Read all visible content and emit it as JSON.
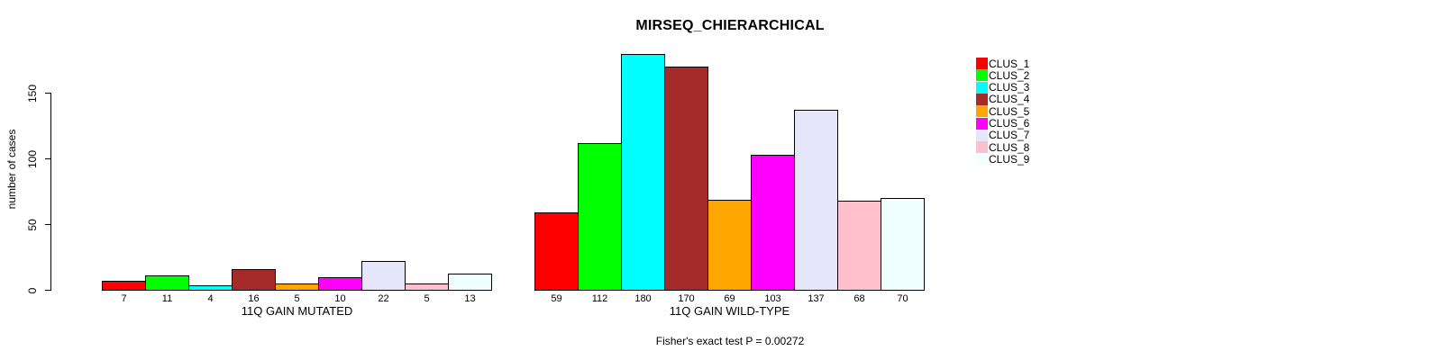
{
  "chart_data": {
    "type": "bar",
    "title": "MIRSEQ_CHIERARCHICAL",
    "ylabel": "number of cases",
    "ylim": [
      0,
      180
    ],
    "yticks": [
      0,
      50,
      100,
      150
    ],
    "grid": false,
    "legend_position": "top-right",
    "annotation": "Fisher's exact test P = 0.00272",
    "legend": [
      {
        "label": "CLUS_1",
        "color": "#FF0000"
      },
      {
        "label": "CLUS_2",
        "color": "#00FF00"
      },
      {
        "label": "CLUS_3",
        "color": "#00FFFF"
      },
      {
        "label": "CLUS_4",
        "color": "#A52A2A"
      },
      {
        "label": "CLUS_5",
        "color": "#FFA500"
      },
      {
        "label": "CLUS_6",
        "color": "#FF00FF"
      },
      {
        "label": "CLUS_7",
        "color": "#E6E6FA"
      },
      {
        "label": "CLUS_8",
        "color": "#FFC0CB"
      },
      {
        "label": "CLUS_9",
        "color": "#F0FFFF"
      }
    ],
    "groups": [
      {
        "xlabel": "11Q GAIN MUTATED",
        "values": [
          7,
          11,
          4,
          16,
          5,
          10,
          22,
          5,
          13
        ]
      },
      {
        "xlabel": "11Q GAIN WILD-TYPE",
        "values": [
          59,
          112,
          180,
          170,
          69,
          103,
          137,
          68,
          70
        ]
      }
    ]
  }
}
